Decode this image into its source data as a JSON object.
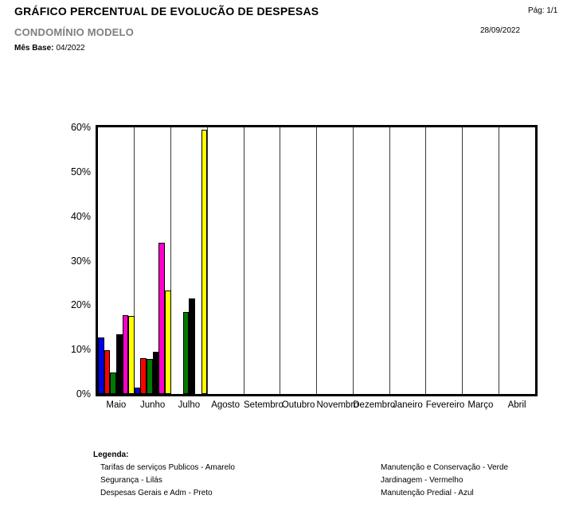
{
  "header": {
    "title": "GRÁFICO PERCENTUAL DE EVOLUCÃO DE DESPESAS",
    "subtitle": "CONDOMÍNIO MODELO",
    "page_label": "Pág: 1/1",
    "date": "28/09/2022",
    "mes_base_label": "Mês Base:",
    "mes_base_value": "04/2022"
  },
  "chart_data": {
    "type": "bar",
    "title": "GRÁFICO PERCENTUAL DE EVOLUCÃO DE DESPESAS",
    "xlabel": "",
    "ylabel": "",
    "ylim": [
      0,
      60
    ],
    "yticks": [
      "0%",
      "10%",
      "20%",
      "30%",
      "40%",
      "50%",
      "60%"
    ],
    "grid": "vertical-only",
    "legend_position": "bottom-text-only",
    "categories": [
      "Maio",
      "Junho",
      "Julho",
      "Agosto",
      "Setembro",
      "Outubro",
      "Novembro",
      "Dezembro",
      "Janeiro",
      "Fevereiro",
      "Março",
      "Abril"
    ],
    "series": [
      {
        "name": "Manutenção Predial",
        "color_name": "Azul",
        "color": "#0000ee",
        "values": [
          12.8,
          1.4,
          0,
          0,
          0,
          0,
          0,
          0,
          0,
          0,
          0,
          0
        ]
      },
      {
        "name": "Jardinagem",
        "color_name": "Vermelho",
        "color": "#ff0000",
        "values": [
          9.9,
          8.1,
          0,
          0,
          0,
          0,
          0,
          0,
          0,
          0,
          0,
          0
        ]
      },
      {
        "name": "Manutenção e Conservação",
        "color_name": "Verde",
        "color": "#007a00",
        "values": [
          4.8,
          7.9,
          18.5,
          0,
          0,
          0,
          0,
          0,
          0,
          0,
          0,
          0
        ]
      },
      {
        "name": "Despesas Gerais e Adm",
        "color_name": "Preto",
        "color": "#000000",
        "values": [
          13.4,
          9.5,
          21.5,
          0,
          0,
          0,
          0,
          0,
          0,
          0,
          0,
          0
        ]
      },
      {
        "name": "Segurança",
        "color_name": "Lilás",
        "color": "#ff00cc",
        "values": [
          17.8,
          34.0,
          0,
          0,
          0,
          0,
          0,
          0,
          0,
          0,
          0,
          0
        ]
      },
      {
        "name": "Tarifas de serviços Publicos",
        "color_name": "Amarelo",
        "color": "#ffff00",
        "values": [
          17.6,
          23.3,
          59.5,
          0,
          0,
          0,
          0,
          0,
          0,
          0,
          0,
          0
        ]
      }
    ]
  },
  "legend": {
    "title": "Legenda:",
    "left_items": [
      "Tarifas de serviços Publicos - Amarelo",
      "Segurança - Lilás",
      "Despesas Gerais e Adm - Preto"
    ],
    "right_items": [
      "Manutenção e Conservação - Verde",
      "Jardinagem - Vermelho",
      "Manutenção Predial - Azul"
    ]
  }
}
